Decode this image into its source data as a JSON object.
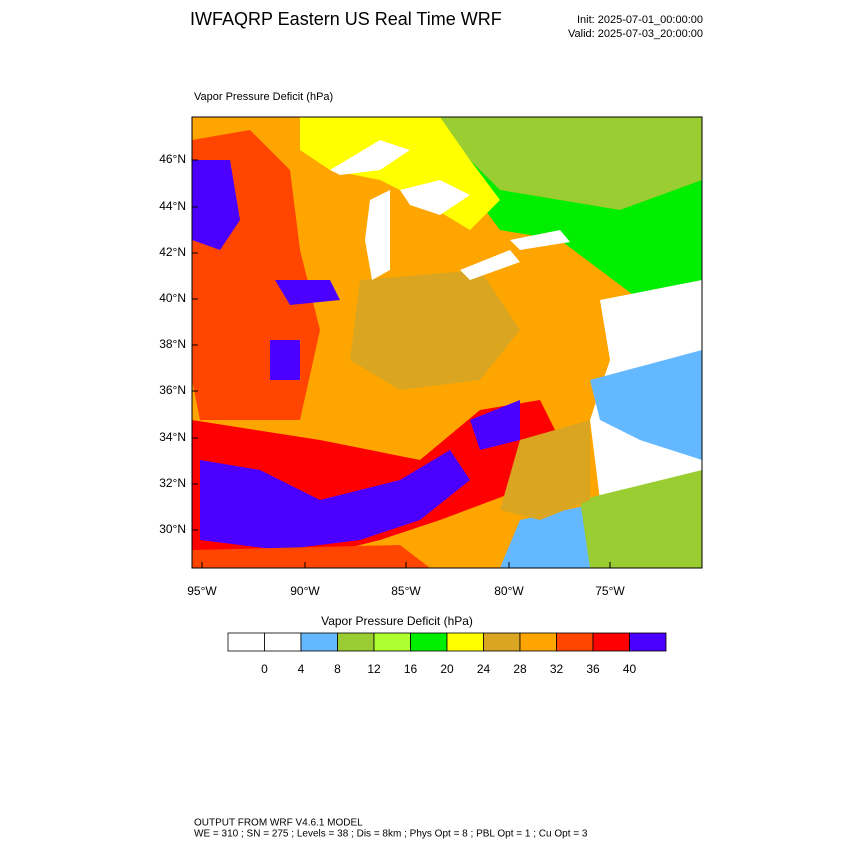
{
  "header": {
    "title": "IWFAQRP Eastern US Real Time WRF",
    "init": "Init: 2025-07-01_00:00:00",
    "valid": "Valid: 2025-07-03_20:00:00"
  },
  "map": {
    "title": "Vapor Pressure Deficit   (hPa)",
    "lat_labels": [
      "46°N",
      "44°N",
      "42°N",
      "40°N",
      "38°N",
      "36°N",
      "34°N",
      "32°N",
      "30°N"
    ],
    "lon_labels": [
      "95°W",
      "90°W",
      "85°W",
      "80°W",
      "75°W"
    ]
  },
  "colorbar": {
    "title": "Vapor Pressure Deficit  (hPa)",
    "colors": [
      "#ffffff",
      "#ffffff",
      "#63b8ff",
      "#9acd32",
      "#adff2f",
      "#00ee00",
      "#ffff00",
      "#daa520",
      "#ffa500",
      "#ff4500",
      "#ff0000",
      "#4b00ff"
    ],
    "labels": [
      0,
      4,
      8,
      12,
      16,
      20,
      24,
      28,
      32,
      36,
      40
    ]
  },
  "footer": {
    "line1": "OUTPUT FROM WRF V4.6.1 MODEL",
    "line2": "WE = 310 ; SN = 275 ; Levels = 38 ; Dis = 8km ; Phys Opt = 8 ; PBL Opt = 1 ; Cu Opt = 3"
  }
}
